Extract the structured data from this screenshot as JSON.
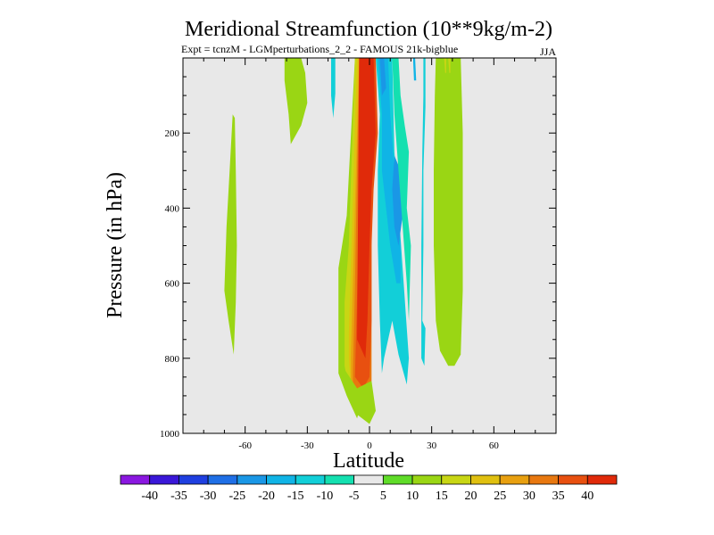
{
  "chart_data": {
    "type": "contour",
    "title": "Meridional Streamfunction (10**9kg/m-2)",
    "subtitle_left": "Expt = tcnzM - LGMperturbations_2_2 - FAMOUS 21k-bigblue",
    "subtitle_right": "JJA",
    "xlabel": "Latitude",
    "ylabel": "Pressure (in hPa)",
    "xlim": [
      -90,
      90
    ],
    "ylim": [
      1000,
      0
    ],
    "x_ticks": [
      -60,
      -30,
      0,
      30,
      60
    ],
    "x_tick_labels": [
      "-60",
      "-30",
      "0",
      "30",
      "60"
    ],
    "y_ticks": [
      200,
      400,
      600,
      800,
      1000
    ],
    "y_tick_labels": [
      "200",
      "400",
      "600",
      "800",
      "1000"
    ],
    "background_color": "#e8e8e8",
    "levels": [
      -45,
      -40,
      -35,
      -30,
      -25,
      -20,
      -15,
      -10,
      -5,
      5,
      10,
      15,
      20,
      25,
      30,
      35,
      40,
      45
    ],
    "legend_labels": [
      "-40",
      "-35",
      "-30",
      "-25",
      "-20",
      "-15",
      "-10",
      "-5",
      "5",
      "10",
      "15",
      "20",
      "25",
      "30",
      "35",
      "40"
    ],
    "colors": [
      "#8a17e0",
      "#3a17d8",
      "#1f3fe0",
      "#1f6fe6",
      "#1a97e6",
      "#10b4e6",
      "#12cfd8",
      "#14e0b0",
      "#e8e8e8",
      "#5fdc28",
      "#9ad614",
      "#c8d614",
      "#e0c010",
      "#e8a010",
      "#e87810",
      "#e85010",
      "#e02a0a"
    ],
    "regions": [
      {
        "band": "10 to 15",
        "points": [
          [
            -41,
            0
          ],
          [
            -33,
            0
          ],
          [
            -31,
            40
          ],
          [
            -30,
            120
          ],
          [
            -33,
            180
          ],
          [
            -38,
            230
          ],
          [
            -39,
            150
          ],
          [
            -41,
            60
          ]
        ]
      },
      {
        "band": "-15 to -10",
        "points": [
          [
            -18.5,
            0
          ],
          [
            -16.5,
            0
          ],
          [
            -16.5,
            95
          ],
          [
            -17.5,
            160
          ],
          [
            -18.5,
            100
          ]
        ]
      },
      {
        "band": "10 to 15",
        "points": [
          [
            -66,
            150
          ],
          [
            -65,
            160
          ],
          [
            -64.5,
            300
          ],
          [
            -64,
            500
          ],
          [
            -64.5,
            650
          ],
          [
            -65.5,
            790
          ],
          [
            -68,
            700
          ],
          [
            -70,
            620
          ],
          [
            -69,
            450
          ],
          [
            -67.5,
            300
          ]
        ]
      },
      {
        "band": "10 to 15",
        "points": [
          [
            -15,
            560
          ],
          [
            -11,
            420
          ],
          [
            -7,
            0
          ],
          [
            -3,
            0
          ],
          [
            -3,
            900
          ],
          [
            -6,
            960
          ],
          [
            -11,
            900
          ],
          [
            -15,
            840
          ]
        ]
      },
      {
        "band": "15 to 20",
        "points": [
          [
            -12,
            650
          ],
          [
            -10,
            500
          ],
          [
            -7,
            0
          ],
          [
            -3,
            0
          ],
          [
            -3,
            890
          ],
          [
            -6,
            940
          ],
          [
            -10,
            880
          ],
          [
            -12,
            820
          ]
        ]
      },
      {
        "band": "20 to 25",
        "points": [
          [
            -10,
            740
          ],
          [
            -9,
            560
          ],
          [
            -6,
            0
          ],
          [
            -1,
            0
          ],
          [
            -1,
            880
          ],
          [
            -4,
            930
          ],
          [
            -9,
            870
          ],
          [
            -10,
            800
          ]
        ]
      },
      {
        "band": "25 to 30",
        "points": [
          [
            -9,
            800
          ],
          [
            -8,
            590
          ],
          [
            -5,
            0
          ],
          [
            0,
            0
          ],
          [
            0,
            870
          ],
          [
            -3,
            920
          ],
          [
            -9,
            860
          ]
        ]
      },
      {
        "band": "30 to 35",
        "points": [
          [
            -8,
            840
          ],
          [
            -7,
            610
          ],
          [
            -5,
            0
          ],
          [
            1,
            0
          ],
          [
            1,
            860
          ],
          [
            -2,
            900
          ],
          [
            -8,
            870
          ]
        ]
      },
      {
        "band": "35 to 40",
        "points": [
          [
            -7,
            850
          ],
          [
            -6,
            630
          ],
          [
            -4,
            0
          ],
          [
            3,
            0
          ],
          [
            4,
            200
          ],
          [
            2,
            350
          ],
          [
            1,
            500
          ],
          [
            1,
            700
          ],
          [
            0,
            850
          ],
          [
            -3,
            880
          ]
        ]
      },
      {
        "band": "40 to 45",
        "points": [
          [
            -6,
            750
          ],
          [
            -5,
            0
          ],
          [
            2,
            0
          ],
          [
            3,
            200
          ],
          [
            1,
            350
          ],
          [
            0,
            500
          ],
          [
            -1,
            700
          ],
          [
            -2,
            800
          ]
        ]
      },
      {
        "band": "10 to 15",
        "points": [
          [
            -13,
            830
          ],
          [
            -10,
            900
          ],
          [
            -6,
            950
          ],
          [
            0,
            975
          ],
          [
            3,
            940
          ],
          [
            1,
            860
          ],
          [
            -6,
            880
          ],
          [
            -12,
            830
          ]
        ]
      },
      {
        "band": "-15 to -10",
        "points": [
          [
            3,
            0
          ],
          [
            11,
            0
          ],
          [
            12,
            250
          ],
          [
            14,
            400
          ],
          [
            19,
            800
          ],
          [
            18,
            870
          ],
          [
            14,
            790
          ],
          [
            11,
            700
          ],
          [
            7,
            800
          ],
          [
            6,
            840
          ],
          [
            5,
            700
          ],
          [
            4,
            500
          ],
          [
            4,
            300
          ],
          [
            5,
            150
          ]
        ]
      },
      {
        "band": "-20 to -15",
        "points": [
          [
            4,
            0
          ],
          [
            9,
            0
          ],
          [
            10,
            150
          ],
          [
            12,
            300
          ],
          [
            15,
            500
          ],
          [
            15,
            600
          ],
          [
            13,
            600
          ],
          [
            10,
            500
          ],
          [
            8,
            400
          ],
          [
            6,
            300
          ],
          [
            6,
            150
          ]
        ]
      },
      {
        "band": "-25 to -20",
        "points": [
          [
            5,
            0
          ],
          [
            7,
            0
          ],
          [
            8,
            80
          ],
          [
            6,
            100
          ]
        ]
      },
      {
        "band": "-25 to -20",
        "points": [
          [
            12,
            260
          ],
          [
            15,
            300
          ],
          [
            16,
            420
          ],
          [
            14,
            500
          ],
          [
            12,
            450
          ],
          [
            11,
            350
          ]
        ]
      },
      {
        "band": "-10 to -5",
        "points": [
          [
            11,
            0
          ],
          [
            14,
            0
          ],
          [
            15,
            100
          ],
          [
            17,
            180
          ],
          [
            19,
            250
          ],
          [
            18,
            400
          ],
          [
            20,
            500
          ],
          [
            19,
            700
          ],
          [
            18,
            600
          ],
          [
            16,
            450
          ],
          [
            14,
            300
          ],
          [
            12,
            150
          ]
        ]
      },
      {
        "band": "-15 to -10",
        "points": [
          [
            26,
            0
          ],
          [
            27,
            0
          ],
          [
            27,
            130
          ],
          [
            26,
            300
          ],
          [
            26,
            500
          ],
          [
            25.5,
            700
          ],
          [
            27,
            720
          ],
          [
            26.5,
            820
          ],
          [
            25,
            800
          ],
          [
            25,
            500
          ],
          [
            25.5,
            250
          ],
          [
            26,
            100
          ]
        ]
      },
      {
        "band": "10 to 15",
        "points": [
          [
            32,
            0
          ],
          [
            44,
            0
          ],
          [
            45,
            200
          ],
          [
            45,
            400
          ],
          [
            45,
            620
          ],
          [
            44,
            790
          ],
          [
            41,
            820
          ],
          [
            38,
            820
          ],
          [
            34,
            780
          ],
          [
            32,
            700
          ],
          [
            31,
            500
          ],
          [
            31,
            300
          ],
          [
            31.5,
            100
          ]
        ]
      },
      {
        "band": "15 to 20",
        "points": [
          [
            36,
            0
          ],
          [
            37,
            0
          ],
          [
            37,
            40
          ],
          [
            36.5,
            40
          ]
        ]
      },
      {
        "band": "15 to 20",
        "points": [
          [
            38,
            0
          ],
          [
            39,
            0
          ],
          [
            39,
            40
          ],
          [
            38.5,
            40
          ]
        ]
      },
      {
        "band": "-20 to -15",
        "points": [
          [
            21,
            0
          ],
          [
            22,
            0
          ],
          [
            22.5,
            60
          ],
          [
            21.5,
            60
          ]
        ]
      }
    ]
  }
}
